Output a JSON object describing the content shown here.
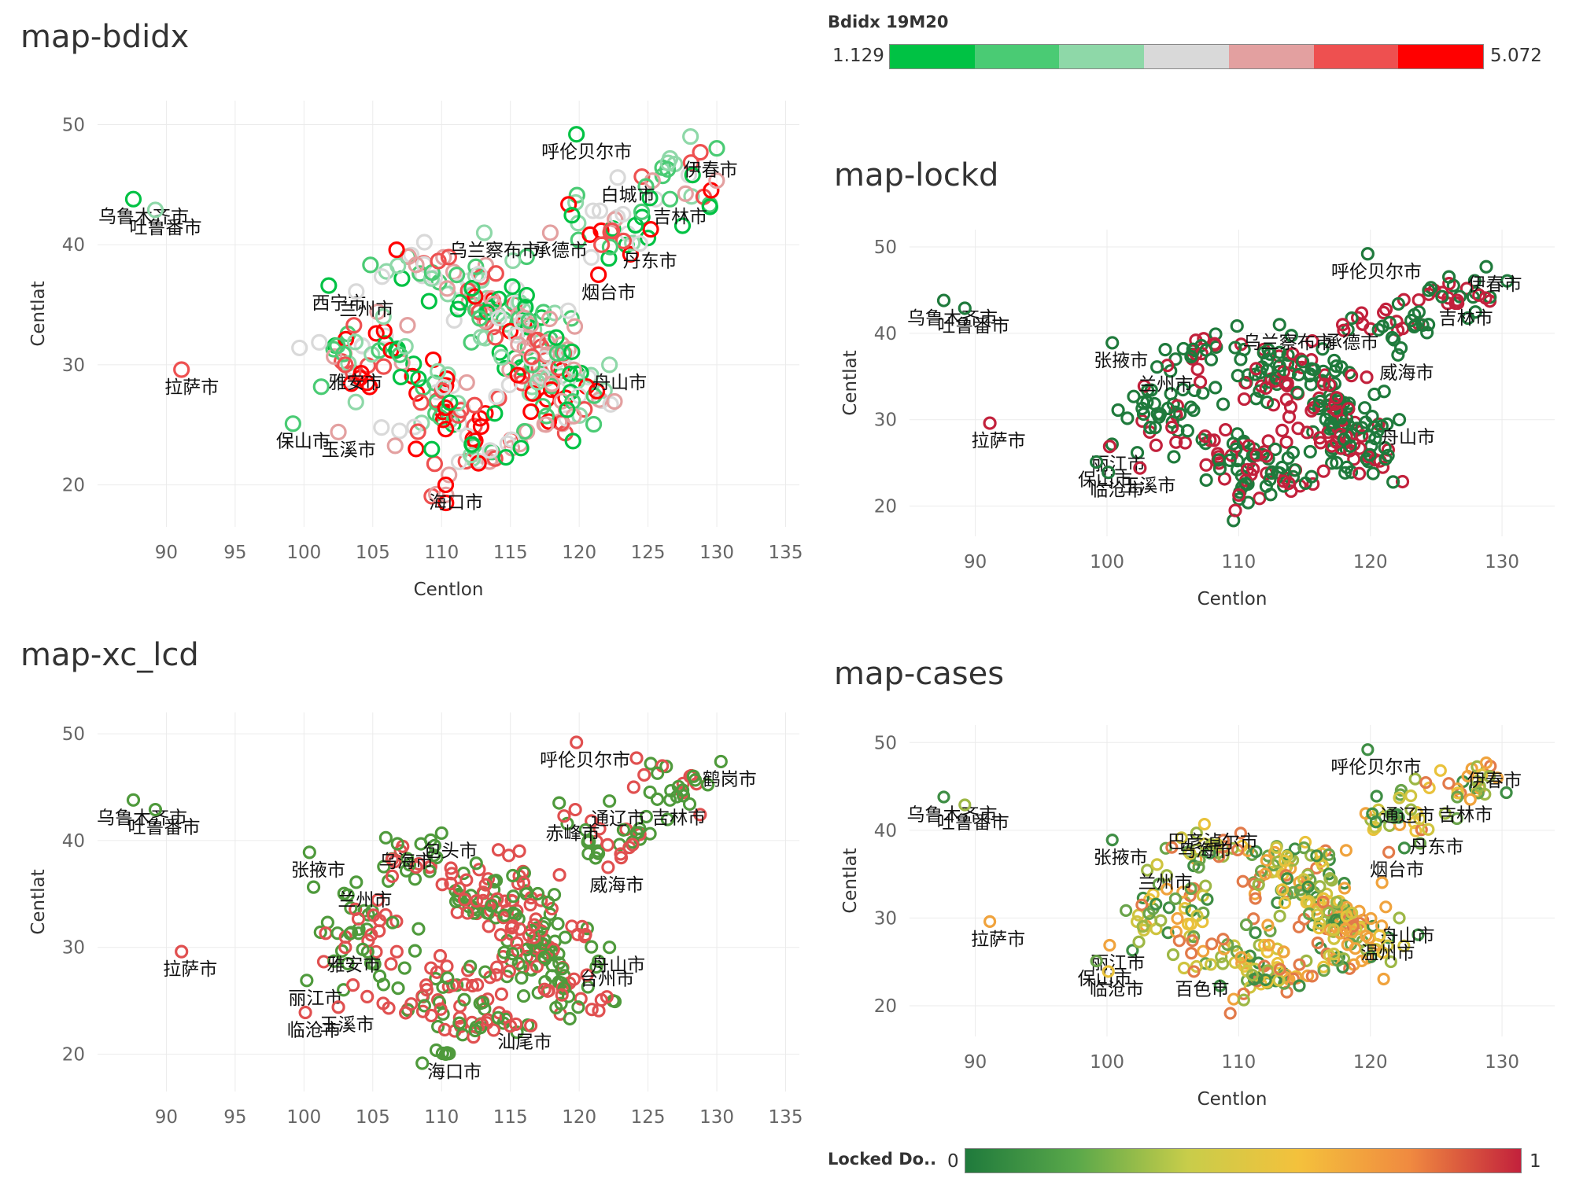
{
  "legend_bdidx": {
    "title": "Bdidx 19M20",
    "min": "1.129",
    "max": "5.072",
    "steps": [
      "#00c244",
      "#4acb74",
      "#8ed8a8",
      "#d9d9d9",
      "#e3a0a0",
      "#ee5050",
      "#ff0000"
    ]
  },
  "legend_locked": {
    "title": "Locked Do..",
    "min": "0",
    "max": "1",
    "gradient": [
      "#1f7a3c",
      "#5aa84a",
      "#c8cd4a",
      "#f4c13c",
      "#f08a40",
      "#c2213c"
    ]
  },
  "chart_data": [
    {
      "type": "scatter",
      "title": "map-bdidx",
      "xlabel": "Centlon",
      "ylabel": "Centlat",
      "xlim": [
        85,
        136
      ],
      "ylim": [
        16.5,
        52
      ],
      "xticks": [
        90,
        95,
        100,
        105,
        110,
        115,
        120,
        125,
        130,
        135
      ],
      "yticks": [
        20,
        30,
        40,
        50
      ],
      "color_field": "Bdidx 19M20",
      "labels": [
        {
          "text": "乌鲁木齐市",
          "x": 87.6,
          "y": 43.8
        },
        {
          "text": "吐鲁番市",
          "x": 89.2,
          "y": 42.9
        },
        {
          "text": "拉萨市",
          "x": 91.1,
          "y": 29.6
        },
        {
          "text": "西宁市",
          "x": 101.8,
          "y": 36.6
        },
        {
          "text": "兰州市",
          "x": 103.8,
          "y": 36.1
        },
        {
          "text": "雅安市",
          "x": 103.0,
          "y": 30.0
        },
        {
          "text": "保山市",
          "x": 99.2,
          "y": 25.1
        },
        {
          "text": "玉溪市",
          "x": 102.5,
          "y": 24.4
        },
        {
          "text": "海口市",
          "x": 110.3,
          "y": 20.0
        },
        {
          "text": "乌兰察布市",
          "x": 113.1,
          "y": 41.0
        },
        {
          "text": "承德市",
          "x": 117.9,
          "y": 41.0
        },
        {
          "text": "呼伦贝尔市",
          "x": 119.8,
          "y": 49.2
        },
        {
          "text": "白城市",
          "x": 122.8,
          "y": 45.6
        },
        {
          "text": "伊春市",
          "x": 128.8,
          "y": 47.7
        },
        {
          "text": "吉林市",
          "x": 126.6,
          "y": 43.8
        },
        {
          "text": "丹东市",
          "x": 124.4,
          "y": 40.1
        },
        {
          "text": "烟台市",
          "x": 121.4,
          "y": 37.5
        },
        {
          "text": "舟山市",
          "x": 122.2,
          "y": 30.0
        }
      ]
    },
    {
      "type": "scatter",
      "title": "map-lockd",
      "xlabel": "Centlon",
      "ylabel": "Centlat",
      "xlim": [
        85,
        134
      ],
      "ylim": [
        16.5,
        52
      ],
      "xticks": [
        90,
        100,
        110,
        120,
        130
      ],
      "yticks": [
        20,
        30,
        40,
        50
      ],
      "color_field": "Locked Do..",
      "labels": [
        {
          "text": "乌鲁木齐市",
          "x": 87.6,
          "y": 43.8
        },
        {
          "text": "吐鲁番市",
          "x": 89.2,
          "y": 42.9
        },
        {
          "text": "拉萨市",
          "x": 91.1,
          "y": 29.6
        },
        {
          "text": "张掖市",
          "x": 100.4,
          "y": 38.9
        },
        {
          "text": "兰州市",
          "x": 103.8,
          "y": 36.1
        },
        {
          "text": "丽江市",
          "x": 100.2,
          "y": 26.9
        },
        {
          "text": "保山市",
          "x": 99.2,
          "y": 25.1
        },
        {
          "text": "临沧市",
          "x": 100.1,
          "y": 23.9
        },
        {
          "text": "玉溪市",
          "x": 102.5,
          "y": 24.4
        },
        {
          "text": "乌兰察布市",
          "x": 113.1,
          "y": 41.0
        },
        {
          "text": "承德市",
          "x": 117.9,
          "y": 41.0
        },
        {
          "text": "呼伦贝尔市",
          "x": 119.8,
          "y": 49.2
        },
        {
          "text": "伊春市",
          "x": 128.8,
          "y": 47.7
        },
        {
          "text": "吉林市",
          "x": 126.6,
          "y": 43.8
        },
        {
          "text": "威海市",
          "x": 122.1,
          "y": 37.5
        },
        {
          "text": "舟山市",
          "x": 122.2,
          "y": 30.0
        }
      ]
    },
    {
      "type": "scatter",
      "title": "map-xc_lcd",
      "xlabel": "",
      "ylabel": "Centlat",
      "xlim": [
        85,
        136
      ],
      "ylim": [
        16.5,
        52
      ],
      "xticks": [
        90,
        95,
        100,
        105,
        110,
        115,
        120,
        125,
        130,
        135
      ],
      "yticks": [
        20,
        30,
        40,
        50
      ],
      "labels": [
        {
          "text": "乌鲁木齐市",
          "x": 87.6,
          "y": 43.8
        },
        {
          "text": "吐鲁番市",
          "x": 89.2,
          "y": 42.9
        },
        {
          "text": "拉萨市",
          "x": 91.1,
          "y": 29.6
        },
        {
          "text": "张掖市",
          "x": 100.4,
          "y": 38.9
        },
        {
          "text": "兰州市",
          "x": 103.8,
          "y": 36.1
        },
        {
          "text": "雅安市",
          "x": 103.0,
          "y": 30.0
        },
        {
          "text": "丽江市",
          "x": 100.2,
          "y": 26.9
        },
        {
          "text": "临沧市",
          "x": 100.1,
          "y": 23.9
        },
        {
          "text": "玉溪市",
          "x": 102.5,
          "y": 24.4
        },
        {
          "text": "海口市",
          "x": 110.3,
          "y": 20.0
        },
        {
          "text": "汕尾市",
          "x": 115.4,
          "y": 22.8
        },
        {
          "text": "台州市",
          "x": 121.4,
          "y": 28.7
        },
        {
          "text": "舟山市",
          "x": 122.2,
          "y": 30.0
        },
        {
          "text": "威海市",
          "x": 122.1,
          "y": 37.5
        },
        {
          "text": "乌海市",
          "x": 106.8,
          "y": 39.7
        },
        {
          "text": "包头市",
          "x": 110.0,
          "y": 40.7
        },
        {
          "text": "赤峰市",
          "x": 118.9,
          "y": 42.3
        },
        {
          "text": "通辽市",
          "x": 122.2,
          "y": 43.7
        },
        {
          "text": "呼伦贝尔市",
          "x": 119.8,
          "y": 49.2
        },
        {
          "text": "鹤岗市",
          "x": 130.3,
          "y": 47.4
        },
        {
          "text": "吉林市",
          "x": 126.6,
          "y": 43.8
        }
      ]
    },
    {
      "type": "scatter",
      "title": "map-cases",
      "xlabel": "Centlon",
      "ylabel": "Centlat",
      "xlim": [
        85,
        134
      ],
      "ylim": [
        16.5,
        52
      ],
      "xticks": [
        90,
        100,
        110,
        120,
        130
      ],
      "yticks": [
        20,
        30,
        40,
        50
      ],
      "color_field": "Locked Do..",
      "labels": [
        {
          "text": "乌鲁木齐市",
          "x": 87.6,
          "y": 43.8
        },
        {
          "text": "吐鲁番市",
          "x": 89.2,
          "y": 42.9
        },
        {
          "text": "拉萨市",
          "x": 91.1,
          "y": 29.6
        },
        {
          "text": "张掖市",
          "x": 100.4,
          "y": 38.9
        },
        {
          "text": "兰州市",
          "x": 103.8,
          "y": 36.1
        },
        {
          "text": "丽江市",
          "x": 100.2,
          "y": 26.9
        },
        {
          "text": "保山市",
          "x": 99.2,
          "y": 25.1
        },
        {
          "text": "临沧市",
          "x": 100.1,
          "y": 23.9
        },
        {
          "text": "百色市",
          "x": 106.6,
          "y": 23.9
        },
        {
          "text": "乌海市",
          "x": 106.8,
          "y": 39.7
        },
        {
          "text": "巴彦淖尔市",
          "x": 107.4,
          "y": 40.7
        },
        {
          "text": "呼伦贝尔市",
          "x": 119.8,
          "y": 49.2
        },
        {
          "text": "通辽市",
          "x": 122.2,
          "y": 43.7
        },
        {
          "text": "伊春市",
          "x": 128.8,
          "y": 47.7
        },
        {
          "text": "吉林市",
          "x": 126.6,
          "y": 43.8
        },
        {
          "text": "丹东市",
          "x": 124.4,
          "y": 40.1
        },
        {
          "text": "烟台市",
          "x": 121.4,
          "y": 37.5
        },
        {
          "text": "舟山市",
          "x": 122.2,
          "y": 30.0
        },
        {
          "text": "温州市",
          "x": 120.7,
          "y": 28.0
        }
      ]
    }
  ]
}
